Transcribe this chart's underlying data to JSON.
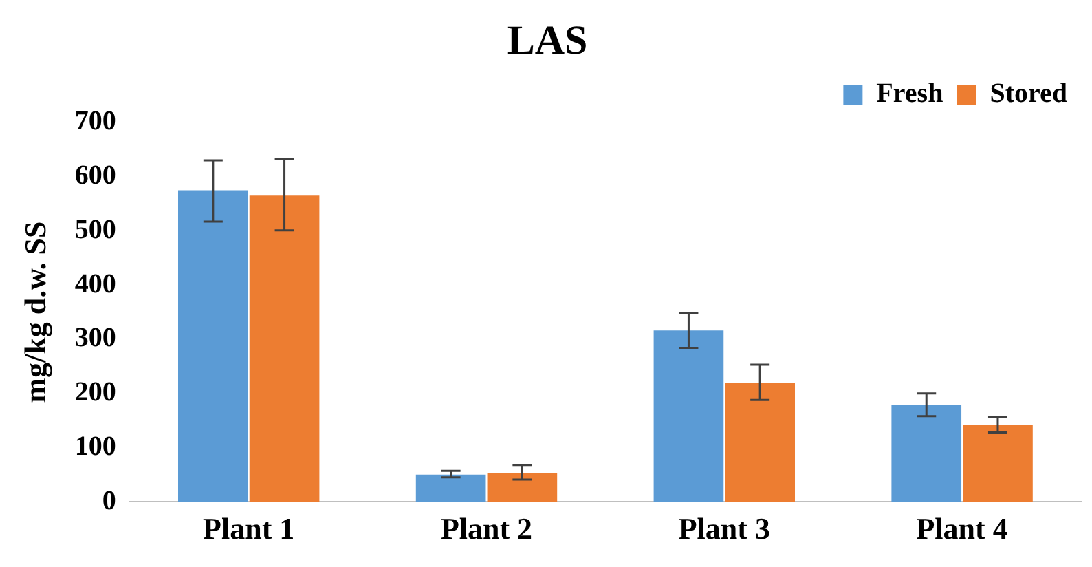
{
  "chart_data": {
    "type": "bar",
    "title": "LAS",
    "ylabel": "mg/kg d.w. SS",
    "categories": [
      "Plant 1",
      "Plant 2",
      "Plant 3",
      "Plant 4"
    ],
    "series": [
      {
        "name": "Fresh",
        "color": "#5b9bd5",
        "values": [
          575,
          50,
          316,
          179
        ],
        "errors": [
          [
            517,
            630
          ],
          [
            45,
            57
          ],
          [
            284,
            349
          ],
          [
            158,
            200
          ]
        ]
      },
      {
        "name": "Stored",
        "color": "#ed7d31",
        "values": [
          565,
          53,
          220,
          142
        ],
        "errors": [
          [
            501,
            632
          ],
          [
            41,
            68
          ],
          [
            188,
            253
          ],
          [
            128,
            157
          ]
        ]
      }
    ],
    "ylim": [
      0,
      700
    ],
    "yticks": [
      0,
      100,
      200,
      300,
      400,
      500,
      600,
      700
    ],
    "grid": false,
    "legend": "top right"
  }
}
